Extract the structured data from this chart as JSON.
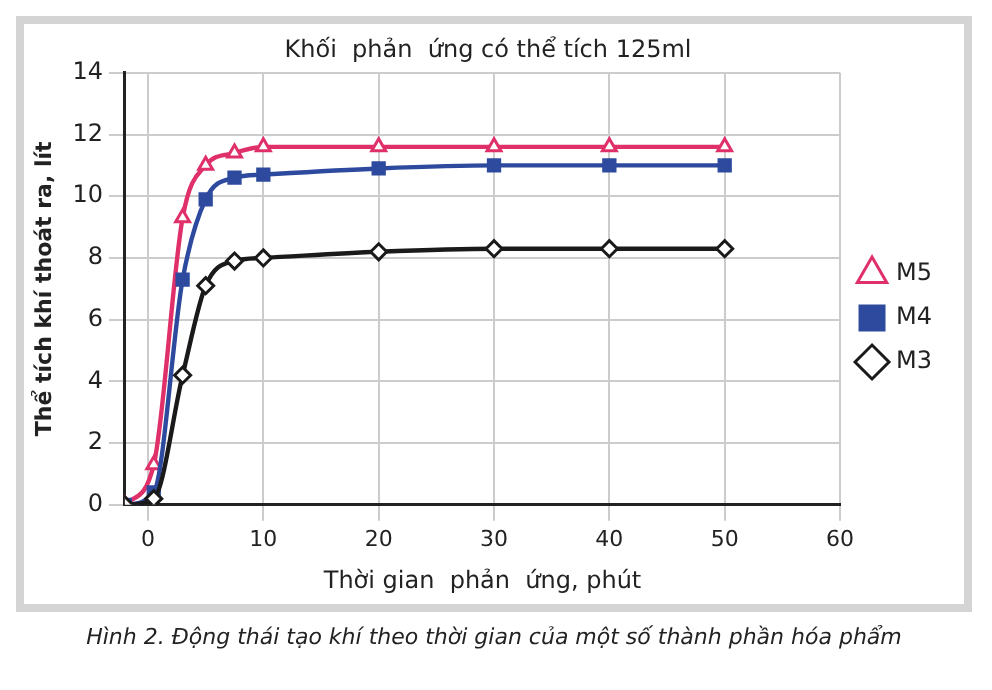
{
  "chart_data": {
    "type": "line",
    "title": "Khối  phản  ứng có thể tích 125ml",
    "xlabel": "Thời gian  phản  ứng, phút",
    "ylabel": "Thể tích khí thoát ra, lít",
    "x": [
      -2,
      0.5,
      3,
      5,
      7.5,
      10,
      20,
      30,
      40,
      50
    ],
    "series": [
      {
        "name": "M5",
        "color": "#e0306a",
        "marker": "triangle",
        "values": [
          0,
          1.3,
          9.3,
          11.0,
          11.4,
          11.6,
          11.6,
          11.6,
          11.6,
          11.6
        ]
      },
      {
        "name": "M4",
        "color": "#2e4a9e",
        "marker": "square",
        "values": [
          0,
          0.4,
          7.3,
          9.9,
          10.6,
          10.7,
          10.9,
          11.0,
          11.0,
          11.0
        ]
      },
      {
        "name": "M3",
        "color": "#1a1a1a",
        "marker": "diamond",
        "values": [
          0,
          0.2,
          4.2,
          7.1,
          7.9,
          8.0,
          8.2,
          8.3,
          8.3,
          8.3
        ]
      }
    ],
    "xlim": [
      -2,
      60
    ],
    "xticks": [
      0,
      10,
      20,
      30,
      40,
      50,
      60
    ],
    "ylim": [
      0,
      14
    ],
    "yticks": [
      0,
      2,
      4,
      6,
      8,
      10,
      12,
      14
    ],
    "grid": true,
    "legend": "right",
    "line_style": "solid",
    "annotations": [
      "Hình 2. Động thái tạo khí theo thời gian của một số thành phần hóa phẩm"
    ]
  }
}
